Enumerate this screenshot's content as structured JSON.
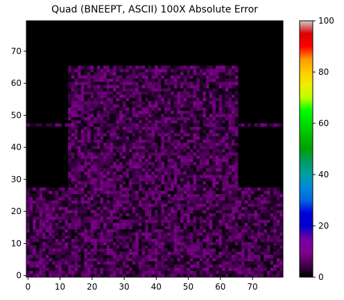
{
  "chart_data": {
    "type": "heatmap",
    "title": "Quad (BNEEPT, ASCII) 100X Absolute Error",
    "xlabel": "",
    "ylabel": "",
    "xlim": [
      0,
      80
    ],
    "ylim": [
      0,
      80
    ],
    "x_ticks": [
      0,
      10,
      20,
      30,
      40,
      50,
      60,
      70
    ],
    "y_ticks": [
      0,
      10,
      20,
      30,
      40,
      50,
      60,
      70
    ],
    "grid": false,
    "colormap": "nipy_spectral",
    "colorbar": {
      "range": [
        0,
        100
      ],
      "ticks": [
        0,
        20,
        40,
        60,
        80,
        100
      ],
      "stops": [
        {
          "v": 0,
          "color": "#000000"
        },
        {
          "v": 5,
          "color": "#470052"
        },
        {
          "v": 10,
          "color": "#82008f"
        },
        {
          "v": 15,
          "color": "#6f00a6"
        },
        {
          "v": 20,
          "color": "#0000cc"
        },
        {
          "v": 25,
          "color": "#0000dd"
        },
        {
          "v": 30,
          "color": "#0066dd"
        },
        {
          "v": 35,
          "color": "#0088dd"
        },
        {
          "v": 40,
          "color": "#00a0a0"
        },
        {
          "v": 45,
          "color": "#009a6a"
        },
        {
          "v": 50,
          "color": "#00a000"
        },
        {
          "v": 55,
          "color": "#00bb00"
        },
        {
          "v": 60,
          "color": "#00dd00"
        },
        {
          "v": 65,
          "color": "#00ff00"
        },
        {
          "v": 70,
          "color": "#bbff00"
        },
        {
          "v": 75,
          "color": "#eeee00"
        },
        {
          "v": 80,
          "color": "#ffcc00"
        },
        {
          "v": 85,
          "color": "#ff9900"
        },
        {
          "v": 90,
          "color": "#ff0000"
        },
        {
          "v": 95,
          "color": "#dd0000"
        },
        {
          "v": 100,
          "color": "#cccccc"
        }
      ]
    },
    "error_regions": [
      {
        "x": [
          0,
          80
        ],
        "y": [
          0,
          28
        ],
        "value_range": [
          0,
          10
        ]
      },
      {
        "x": [
          13,
          66
        ],
        "y": [
          28,
          66
        ],
        "value_range": [
          0,
          10
        ]
      },
      {
        "x": [
          0,
          80
        ],
        "y": [
          47,
          48
        ],
        "value_range": [
          0,
          10
        ]
      }
    ],
    "background_value": 0
  }
}
